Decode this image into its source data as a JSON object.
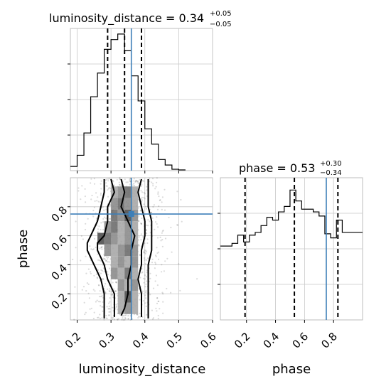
{
  "colors": {
    "truth": "#3d7fb8",
    "hist": "#000000",
    "frame": "#bdbdbd",
    "grid": "#c8c8c8"
  },
  "chart_data": [
    {
      "type": "histogram",
      "panel": "luminosity_distance marginal",
      "title": {
        "main": "luminosity_distance = 0.34",
        "sup": "+0.05",
        "sub": "−0.05"
      },
      "xlim": [
        0.18,
        0.6
      ],
      "bins": [
        0.18,
        0.2,
        0.22,
        0.24,
        0.26,
        0.28,
        0.3,
        0.32,
        0.34,
        0.36,
        0.38,
        0.4,
        0.42,
        0.44,
        0.46,
        0.48,
        0.5,
        0.52
      ],
      "values": [
        0.03,
        0.11,
        0.27,
        0.53,
        0.7,
        0.87,
        0.94,
        0.98,
        0.86,
        0.68,
        0.5,
        0.3,
        0.19,
        0.08,
        0.04,
        0.01,
        0.005
      ],
      "quantiles": [
        0.29,
        0.34,
        0.39
      ],
      "truth": 0.36
    },
    {
      "type": "scatter",
      "panel": "joint luminosity_distance vs phase",
      "xlabel": "luminosity_distance",
      "ylabel": "phase",
      "xlim": [
        0.18,
        0.6
      ],
      "ylim": [
        0.02,
        1.0
      ],
      "xticks": [
        "0.2",
        "0.3",
        "0.4",
        "0.5",
        "0.6"
      ],
      "xtick_values": [
        0.2,
        0.3,
        0.4,
        0.5,
        0.6
      ],
      "yticks": [
        "0.2",
        "0.4",
        "0.6",
        "0.8"
      ],
      "ytick_values": [
        0.2,
        0.4,
        0.6,
        0.8
      ],
      "truth": [
        0.36,
        0.75
      ],
      "contours": [
        [
          [
            0.33,
            0.99
          ],
          [
            0.34,
            0.9
          ],
          [
            0.33,
            0.8
          ],
          [
            0.35,
            0.7
          ],
          [
            0.37,
            0.6
          ],
          [
            0.36,
            0.5
          ],
          [
            0.36,
            0.4
          ],
          [
            0.35,
            0.3
          ],
          [
            0.35,
            0.2
          ],
          [
            0.34,
            0.1
          ],
          [
            0.33,
            0.05
          ]
        ],
        [
          [
            0.3,
            0.99
          ],
          [
            0.31,
            0.9
          ],
          [
            0.29,
            0.8
          ],
          [
            0.29,
            0.7
          ],
          [
            0.28,
            0.6
          ],
          [
            0.26,
            0.55
          ],
          [
            0.26,
            0.5
          ],
          [
            0.28,
            0.4
          ],
          [
            0.29,
            0.3
          ],
          [
            0.31,
            0.2
          ],
          [
            0.31,
            0.1
          ],
          [
            0.31,
            0.04
          ]
        ],
        [
          [
            0.39,
            0.99
          ],
          [
            0.38,
            0.9
          ],
          [
            0.39,
            0.8
          ],
          [
            0.4,
            0.7
          ],
          [
            0.4,
            0.6
          ],
          [
            0.39,
            0.5
          ],
          [
            0.39,
            0.4
          ],
          [
            0.38,
            0.3
          ],
          [
            0.39,
            0.2
          ],
          [
            0.39,
            0.1
          ],
          [
            0.39,
            0.04
          ]
        ],
        [
          [
            0.28,
            0.99
          ],
          [
            0.28,
            0.9
          ],
          [
            0.27,
            0.8
          ],
          [
            0.26,
            0.7
          ],
          [
            0.24,
            0.6
          ],
          [
            0.23,
            0.55
          ],
          [
            0.23,
            0.5
          ],
          [
            0.25,
            0.4
          ],
          [
            0.27,
            0.3
          ],
          [
            0.28,
            0.2
          ],
          [
            0.28,
            0.1
          ],
          [
            0.28,
            0.03
          ]
        ],
        [
          [
            0.41,
            0.99
          ],
          [
            0.41,
            0.9
          ],
          [
            0.41,
            0.8
          ],
          [
            0.42,
            0.7
          ],
          [
            0.42,
            0.6
          ],
          [
            0.42,
            0.5
          ],
          [
            0.41,
            0.4
          ],
          [
            0.41,
            0.3
          ],
          [
            0.41,
            0.2
          ],
          [
            0.41,
            0.1
          ],
          [
            0.41,
            0.03
          ]
        ]
      ]
    },
    {
      "type": "histogram",
      "panel": "phase marginal",
      "title": {
        "main": "phase = 0.53",
        "sup": "+0.30",
        "sub": "−0.34"
      },
      "xlabel": "phase",
      "xlim": [
        0.02,
        1.0
      ],
      "xticks": [
        "0.2",
        "0.4",
        "0.6",
        "0.8"
      ],
      "xtick_values": [
        0.2,
        0.4,
        0.6,
        0.8
      ],
      "bins": [
        0.02,
        0.06,
        0.1,
        0.14,
        0.18,
        0.22,
        0.26,
        0.3,
        0.34,
        0.38,
        0.42,
        0.46,
        0.5,
        0.54,
        0.58,
        0.62,
        0.66,
        0.7,
        0.74,
        0.78,
        0.82,
        0.86,
        0.9,
        1.0
      ],
      "values": [
        0.54,
        0.54,
        0.56,
        0.62,
        0.57,
        0.62,
        0.64,
        0.69,
        0.75,
        0.73,
        0.79,
        0.83,
        0.95,
        0.87,
        0.81,
        0.81,
        0.79,
        0.76,
        0.63,
        0.6,
        0.73,
        0.64,
        0.64
      ],
      "quantiles": [
        0.19,
        0.53,
        0.83
      ],
      "truth": 0.75
    }
  ]
}
